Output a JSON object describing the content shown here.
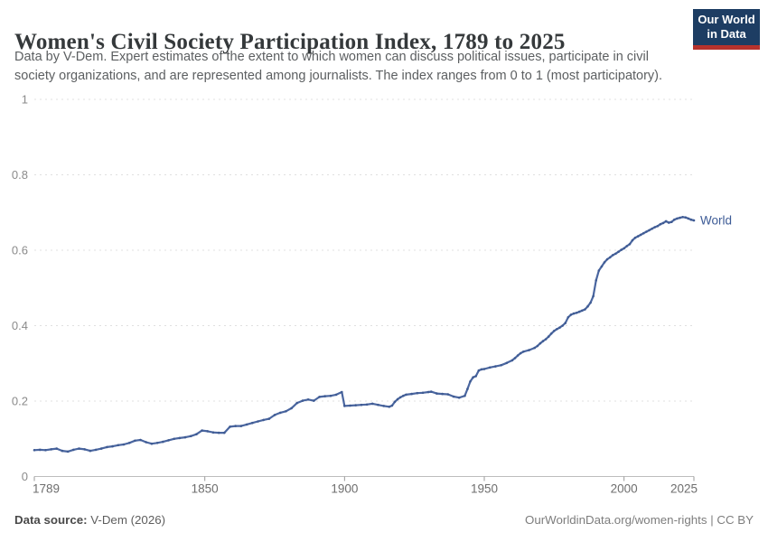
{
  "header": {
    "title": "Women's Civil Society Participation Index, 1789 to 2025",
    "subtitle_line1": "Data by V-Dem. Expert estimates of the extent to which women can discuss political issues, participate in civil",
    "subtitle_line2": "society organizations, and are represented among journalists. The index ranges from 0 to 1 (most participatory).",
    "logo": {
      "line1": "Our World",
      "line2": "in Data",
      "bg_color": "#1d3d63",
      "accent_color": "#b6322d"
    }
  },
  "chart_data": {
    "type": "line",
    "title": "Women's Civil Society Participation Index, 1789 to 2025",
    "xlabel": "",
    "ylabel": "",
    "xlim": [
      1789,
      2025
    ],
    "ylim": [
      0,
      1
    ],
    "grid": "horizontal-dashed",
    "legend_position": "end-of-line",
    "xticks": [
      1789,
      1850,
      1900,
      1950,
      2000,
      2025
    ],
    "yticks": [
      {
        "v": 0,
        "label": "0"
      },
      {
        "v": 0.2,
        "label": "0.2"
      },
      {
        "v": 0.4,
        "label": "0.4"
      },
      {
        "v": 0.6,
        "label": "0.6"
      },
      {
        "v": 0.8,
        "label": "0.8"
      },
      {
        "v": 1,
        "label": "1"
      }
    ],
    "grid_color": "#e0e0e0",
    "axis_color": "#bdbdbd",
    "tick_color": "#999999",
    "series": [
      {
        "name": "World",
        "color": "#4a66a0",
        "marker_color": "#3f5b93",
        "label_color": "#3d5b96",
        "points": [
          [
            1789,
            0.07
          ],
          [
            1791,
            0.071
          ],
          [
            1793,
            0.07
          ],
          [
            1795,
            0.072
          ],
          [
            1797,
            0.074
          ],
          [
            1799,
            0.068
          ],
          [
            1801,
            0.066
          ],
          [
            1803,
            0.071
          ],
          [
            1805,
            0.074
          ],
          [
            1807,
            0.072
          ],
          [
            1809,
            0.068
          ],
          [
            1811,
            0.071
          ],
          [
            1813,
            0.074
          ],
          [
            1815,
            0.078
          ],
          [
            1817,
            0.08
          ],
          [
            1819,
            0.083
          ],
          [
            1821,
            0.085
          ],
          [
            1823,
            0.089
          ],
          [
            1825,
            0.095
          ],
          [
            1827,
            0.097
          ],
          [
            1829,
            0.091
          ],
          [
            1831,
            0.087
          ],
          [
            1833,
            0.089
          ],
          [
            1835,
            0.092
          ],
          [
            1837,
            0.096
          ],
          [
            1839,
            0.1
          ],
          [
            1841,
            0.102
          ],
          [
            1843,
            0.104
          ],
          [
            1845,
            0.107
          ],
          [
            1847,
            0.112
          ],
          [
            1849,
            0.122
          ],
          [
            1851,
            0.12
          ],
          [
            1853,
            0.117
          ],
          [
            1855,
            0.116
          ],
          [
            1857,
            0.116
          ],
          [
            1859,
            0.132
          ],
          [
            1861,
            0.134
          ],
          [
            1863,
            0.134
          ],
          [
            1865,
            0.138
          ],
          [
            1867,
            0.142
          ],
          [
            1869,
            0.146
          ],
          [
            1871,
            0.15
          ],
          [
            1873,
            0.153
          ],
          [
            1875,
            0.163
          ],
          [
            1877,
            0.169
          ],
          [
            1879,
            0.173
          ],
          [
            1881,
            0.181
          ],
          [
            1883,
            0.195
          ],
          [
            1885,
            0.201
          ],
          [
            1887,
            0.204
          ],
          [
            1889,
            0.201
          ],
          [
            1891,
            0.211
          ],
          [
            1893,
            0.213
          ],
          [
            1895,
            0.214
          ],
          [
            1897,
            0.217
          ],
          [
            1899,
            0.224
          ],
          [
            1900,
            0.187
          ],
          [
            1902,
            0.188
          ],
          [
            1904,
            0.189
          ],
          [
            1906,
            0.19
          ],
          [
            1908,
            0.191
          ],
          [
            1910,
            0.193
          ],
          [
            1912,
            0.19
          ],
          [
            1914,
            0.187
          ],
          [
            1916,
            0.185
          ],
          [
            1917,
            0.188
          ],
          [
            1918,
            0.198
          ],
          [
            1919,
            0.205
          ],
          [
            1920,
            0.21
          ],
          [
            1921,
            0.214
          ],
          [
            1922,
            0.217
          ],
          [
            1924,
            0.219
          ],
          [
            1926,
            0.221
          ],
          [
            1928,
            0.222
          ],
          [
            1930,
            0.224
          ],
          [
            1931,
            0.225
          ],
          [
            1933,
            0.22
          ],
          [
            1935,
            0.219
          ],
          [
            1937,
            0.218
          ],
          [
            1939,
            0.212
          ],
          [
            1941,
            0.209
          ],
          [
            1943,
            0.214
          ],
          [
            1944,
            0.232
          ],
          [
            1945,
            0.252
          ],
          [
            1946,
            0.263
          ],
          [
            1947,
            0.266
          ],
          [
            1948,
            0.281
          ],
          [
            1949,
            0.284
          ],
          [
            1950,
            0.285
          ],
          [
            1952,
            0.289
          ],
          [
            1954,
            0.292
          ],
          [
            1956,
            0.295
          ],
          [
            1958,
            0.301
          ],
          [
            1960,
            0.308
          ],
          [
            1961,
            0.314
          ],
          [
            1962,
            0.321
          ],
          [
            1963,
            0.327
          ],
          [
            1964,
            0.331
          ],
          [
            1966,
            0.335
          ],
          [
            1968,
            0.341
          ],
          [
            1969,
            0.346
          ],
          [
            1970,
            0.353
          ],
          [
            1971,
            0.359
          ],
          [
            1972,
            0.364
          ],
          [
            1973,
            0.371
          ],
          [
            1974,
            0.379
          ],
          [
            1975,
            0.386
          ],
          [
            1976,
            0.391
          ],
          [
            1977,
            0.395
          ],
          [
            1978,
            0.4
          ],
          [
            1979,
            0.407
          ],
          [
            1980,
            0.422
          ],
          [
            1981,
            0.429
          ],
          [
            1982,
            0.432
          ],
          [
            1983,
            0.434
          ],
          [
            1984,
            0.437
          ],
          [
            1985,
            0.44
          ],
          [
            1986,
            0.443
          ],
          [
            1987,
            0.451
          ],
          [
            1988,
            0.461
          ],
          [
            1989,
            0.478
          ],
          [
            1990,
            0.52
          ],
          [
            1991,
            0.546
          ],
          [
            1992,
            0.557
          ],
          [
            1993,
            0.568
          ],
          [
            1994,
            0.576
          ],
          [
            1995,
            0.581
          ],
          [
            1996,
            0.587
          ],
          [
            1997,
            0.591
          ],
          [
            1998,
            0.596
          ],
          [
            1999,
            0.601
          ],
          [
            2000,
            0.605
          ],
          [
            2001,
            0.611
          ],
          [
            2002,
            0.616
          ],
          [
            2003,
            0.626
          ],
          [
            2004,
            0.633
          ],
          [
            2005,
            0.637
          ],
          [
            2006,
            0.641
          ],
          [
            2007,
            0.645
          ],
          [
            2008,
            0.649
          ],
          [
            2009,
            0.653
          ],
          [
            2010,
            0.657
          ],
          [
            2011,
            0.661
          ],
          [
            2012,
            0.664
          ],
          [
            2013,
            0.669
          ],
          [
            2014,
            0.672
          ],
          [
            2015,
            0.677
          ],
          [
            2016,
            0.673
          ],
          [
            2017,
            0.675
          ],
          [
            2018,
            0.681
          ],
          [
            2019,
            0.684
          ],
          [
            2020,
            0.686
          ],
          [
            2021,
            0.688
          ],
          [
            2022,
            0.687
          ],
          [
            2023,
            0.684
          ],
          [
            2024,
            0.681
          ],
          [
            2025,
            0.679
          ]
        ]
      }
    ]
  },
  "footer": {
    "source_label": "Data source:",
    "source_value": "V-Dem (2026)",
    "right_text": "OurWorldinData.org/women-rights | CC BY"
  }
}
